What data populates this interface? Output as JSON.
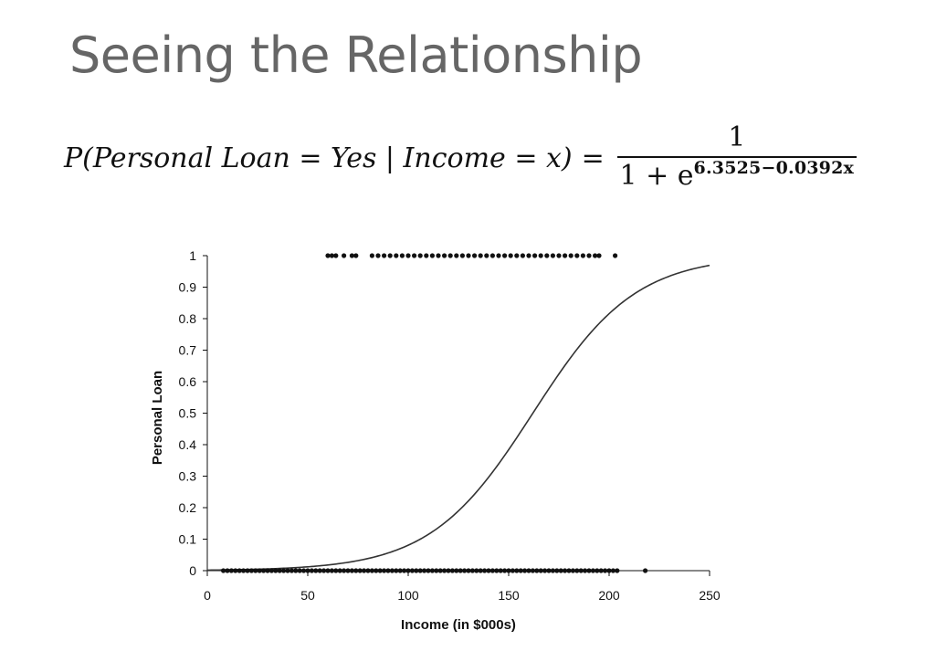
{
  "slide": {
    "title": "Seeing the Relationship"
  },
  "formula": {
    "lhs": "P(Personal Loan = Yes | Income = x)",
    "equals": "=",
    "numerator": "1",
    "denominator_base": "1 + e",
    "exponent": "6.3525−0.0392x"
  },
  "chart_data": {
    "type": "scatter",
    "title": "",
    "xlabel": "Income (in $000s)",
    "ylabel": "Personal Loan",
    "xlim": [
      0,
      250
    ],
    "ylim": [
      0,
      1
    ],
    "xticks": [
      0,
      50,
      100,
      150,
      200,
      250
    ],
    "yticks": [
      0,
      0.1,
      0.2,
      0.3,
      0.4,
      0.5,
      0.6,
      0.7,
      0.8,
      0.9,
      1
    ],
    "ytick_labels": [
      "0",
      "0.1",
      "0.2",
      "0.3",
      "0.4",
      "0.5",
      "0.6",
      "0.7",
      "0.8",
      "0.9",
      "1"
    ],
    "xtick_labels": [
      "0",
      "50",
      "100",
      "150",
      "200",
      "250"
    ],
    "grid": false,
    "legend": "none",
    "curve": {
      "intercept": 6.3525,
      "slope": -0.0392,
      "x_range": [
        0,
        250
      ]
    },
    "points": {
      "yes_y": 1,
      "no_y": 0,
      "yes_incomes": [
        60,
        62,
        64,
        68,
        72,
        74,
        82,
        85,
        88,
        91,
        94,
        97,
        100,
        103,
        106,
        109,
        112,
        115,
        118,
        121,
        124,
        127,
        130,
        133,
        136,
        139,
        142,
        145,
        148,
        151,
        154,
        157,
        160,
        163,
        166,
        169,
        172,
        175,
        178,
        181,
        184,
        187,
        190,
        193,
        195,
        203
      ],
      "no_incomes": [
        8,
        10,
        12,
        14,
        16,
        18,
        20,
        22,
        24,
        26,
        28,
        30,
        32,
        34,
        36,
        38,
        40,
        42,
        44,
        46,
        48,
        50,
        52,
        54,
        56,
        58,
        60,
        62,
        64,
        66,
        68,
        70,
        72,
        74,
        76,
        78,
        80,
        82,
        84,
        86,
        88,
        90,
        92,
        94,
        96,
        98,
        100,
        102,
        104,
        106,
        108,
        110,
        112,
        114,
        116,
        118,
        120,
        122,
        124,
        126,
        128,
        130,
        132,
        134,
        136,
        138,
        140,
        142,
        144,
        146,
        148,
        150,
        152,
        154,
        156,
        158,
        160,
        162,
        164,
        166,
        168,
        170,
        172,
        174,
        176,
        178,
        180,
        182,
        184,
        186,
        188,
        190,
        192,
        194,
        196,
        198,
        200,
        202,
        204,
        218
      ]
    },
    "colors": {
      "points": "#111111",
      "curve": "#333333",
      "axes": "#111111"
    }
  }
}
